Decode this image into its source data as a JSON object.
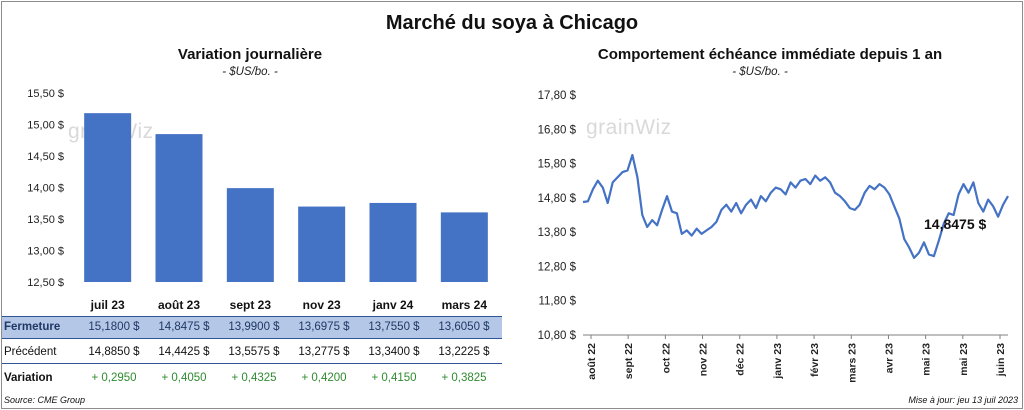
{
  "title": "Marché du soya à Chicago",
  "watermark": "grainWiz",
  "colors": {
    "bar": "#4472c4",
    "line": "#4472c4",
    "variation": "#2e8b2e",
    "header_bg": "#b4c7e7"
  },
  "left_panel": {
    "title": "Variation journalière",
    "subtitle": "- $US/bo. -"
  },
  "right_panel": {
    "title": "Comportement échéance immédiate depuis 1 an",
    "subtitle": "- $US/bo. -",
    "last_value_label": "14,8475 $"
  },
  "table": {
    "rows": [
      {
        "label": "Fermeture",
        "cells": [
          "15,1800  $",
          "14,8475  $",
          "13,9900  $",
          "13,6975  $",
          "13,7550  $",
          "13,6050  $"
        ]
      },
      {
        "label": "Précédent",
        "cells": [
          "14,8850  $",
          "14,4425  $",
          "13,5575  $",
          "13,2775  $",
          "13,3400  $",
          "13,2225  $"
        ]
      },
      {
        "label": "Variation",
        "cells": [
          "+ 0,2950",
          "+ 0,4050",
          "+ 0,4325",
          "+ 0,4200",
          "+ 0,4150",
          "+ 0,3825"
        ]
      }
    ]
  },
  "footer": {
    "source": "Source: CME Group",
    "updated": "Mise à jour: jeu 13 juil 2023"
  },
  "chart_data": [
    {
      "type": "bar",
      "title": "Variation journalière",
      "categories": [
        "juil 23",
        "août 23",
        "sept 23",
        "nov 23",
        "janv 24",
        "mars 24"
      ],
      "values": [
        15.18,
        14.8475,
        13.99,
        13.6975,
        13.755,
        13.605
      ],
      "ylim": [
        12.5,
        15.5
      ],
      "yticks": [
        "12,50 $",
        "13,00 $",
        "13,50 $",
        "14,00 $",
        "14,50 $",
        "15,00 $",
        "15,50 $"
      ],
      "grid": false
    },
    {
      "type": "line",
      "title": "Comportement échéance immédiate depuis 1 an",
      "ylim": [
        10.8,
        17.8
      ],
      "yticks": [
        "10,80 $",
        "11,80 $",
        "12,80 $",
        "13,80 $",
        "14,80 $",
        "15,80 $",
        "16,80 $",
        "17,80 $"
      ],
      "xticks": [
        "août 22",
        "sept 22",
        "oct 22",
        "nov 22",
        "déc 22",
        "janv 23",
        "févr 23",
        "mars 23",
        "avr 23",
        "mai 23",
        "mai 23",
        "juin 23"
      ],
      "values": [
        14.68,
        14.7,
        15.05,
        15.3,
        15.1,
        14.65,
        15.25,
        15.4,
        15.55,
        15.6,
        16.05,
        15.4,
        14.3,
        13.95,
        14.15,
        14.0,
        14.45,
        14.85,
        14.4,
        14.35,
        13.75,
        13.85,
        13.7,
        13.9,
        13.75,
        13.85,
        13.95,
        14.1,
        14.45,
        14.6,
        14.4,
        14.65,
        14.35,
        14.6,
        14.75,
        14.5,
        14.85,
        14.7,
        14.95,
        15.1,
        15.05,
        14.9,
        15.25,
        15.1,
        15.3,
        15.35,
        15.2,
        15.45,
        15.3,
        15.4,
        15.25,
        14.95,
        14.85,
        14.7,
        14.5,
        14.45,
        14.6,
        14.95,
        15.15,
        15.05,
        15.2,
        15.1,
        14.9,
        14.55,
        14.2,
        13.6,
        13.35,
        13.05,
        13.2,
        13.5,
        13.15,
        13.1,
        13.55,
        14.05,
        14.35,
        14.3,
        14.9,
        15.2,
        14.95,
        15.25,
        14.65,
        14.4,
        14.75,
        14.55,
        14.25,
        14.6,
        14.85
      ]
    }
  ]
}
